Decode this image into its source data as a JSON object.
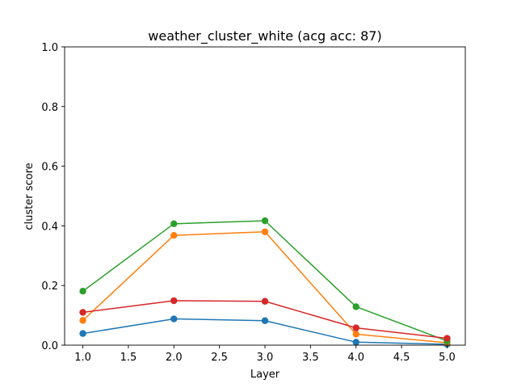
{
  "chart_data": {
    "type": "line",
    "title": "weather_cluster_white (acg acc: 87)",
    "xlabel": "Layer",
    "ylabel": "cluster score",
    "xlim": [
      0.8,
      5.2
    ],
    "ylim": [
      0.0,
      1.0
    ],
    "xticks": [
      "1.0",
      "1.5",
      "2.0",
      "2.5",
      "3.0",
      "3.5",
      "4.0",
      "4.5",
      "5.0"
    ],
    "yticks": [
      "0.0",
      "0.2",
      "0.4",
      "0.6",
      "0.8",
      "1.0"
    ],
    "grid": false,
    "x": [
      1,
      2,
      3,
      4,
      5
    ],
    "series": [
      {
        "color": "#1f77b4",
        "values": [
          0.039,
          0.088,
          0.082,
          0.01,
          0.003
        ]
      },
      {
        "color": "#ff7f0e",
        "values": [
          0.083,
          0.368,
          0.38,
          0.037,
          0.008
        ]
      },
      {
        "color": "#2ca02c",
        "values": [
          0.181,
          0.407,
          0.417,
          0.129,
          0.014
        ]
      },
      {
        "color": "#d62728",
        "values": [
          0.11,
          0.149,
          0.147,
          0.058,
          0.023
        ]
      }
    ]
  }
}
